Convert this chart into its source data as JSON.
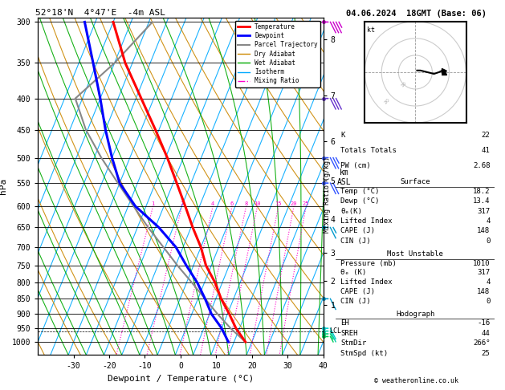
{
  "title_left": "52°18'N  4°47'E  -4m ASL",
  "title_right": "04.06.2024  18GMT (Base: 06)",
  "xlabel": "Dewpoint / Temperature (°C)",
  "ylabel_left": "hPa",
  "ylabel_right": "km\nASL",
  "pressure_levels": [
    300,
    350,
    400,
    450,
    500,
    550,
    600,
    650,
    700,
    750,
    800,
    850,
    900,
    950,
    1000
  ],
  "temp_range": [
    -40,
    40
  ],
  "temp_ticks": [
    -30,
    -20,
    -10,
    0,
    10,
    20,
    30,
    40
  ],
  "km_ticks": [
    1,
    2,
    3,
    4,
    5,
    6,
    7,
    8
  ],
  "km_pressures": [
    870,
    795,
    715,
    630,
    545,
    470,
    395,
    320
  ],
  "lcl_pressure": 960,
  "color_temperature": "#ff0000",
  "color_dewpoint": "#0000ff",
  "color_parcel": "#888888",
  "color_dry_adiabat": "#cc8800",
  "color_wet_adiabat": "#00aa00",
  "color_isotherm": "#00aaff",
  "color_mixing": "#ff00cc",
  "legend_items": [
    {
      "label": "Temperature",
      "color": "#ff0000",
      "lw": 2.0,
      "ls": "-"
    },
    {
      "label": "Dewpoint",
      "color": "#0000ff",
      "lw": 2.0,
      "ls": "-"
    },
    {
      "label": "Parcel Trajectory",
      "color": "#888888",
      "lw": 1.5,
      "ls": "-"
    },
    {
      "label": "Dry Adiabat",
      "color": "#cc8800",
      "lw": 1.0,
      "ls": "-"
    },
    {
      "label": "Wet Adiabat",
      "color": "#00aa00",
      "lw": 1.0,
      "ls": "-"
    },
    {
      "label": "Isotherm",
      "color": "#00aaff",
      "lw": 1.0,
      "ls": "-"
    },
    {
      "label": "Mixing Ratio",
      "color": "#ff00cc",
      "lw": 1.0,
      "ls": "-."
    }
  ],
  "stats": {
    "K": 22,
    "Totals Totals": 41,
    "PW (cm)": 2.68,
    "Surface": {
      "Temp (C)": 18.2,
      "Dewp (C)": 13.4,
      "theta_e (K)": 317,
      "Lifted Index": 4,
      "CAPE (J)": 148,
      "CIN (J)": 0
    },
    "Most Unstable": {
      "Pressure (mb)": 1010,
      "theta_e (K)": 317,
      "Lifted Index": 4,
      "CAPE (J)": 148,
      "CIN (J)": 0
    },
    "Hodograph": {
      "EH": -16,
      "SREH": 44,
      "StmDir": 266,
      "StmSpd (kt)": 25
    }
  },
  "temperature_profile": {
    "pressure": [
      1000,
      950,
      900,
      850,
      800,
      750,
      700,
      650,
      600,
      550,
      500,
      450,
      400,
      350,
      300
    ],
    "temp": [
      18.2,
      14.0,
      10.5,
      6.5,
      3.0,
      -1.5,
      -5.0,
      -9.5,
      -14.0,
      -19.0,
      -24.5,
      -31.0,
      -38.5,
      -47.0,
      -55.0
    ]
  },
  "dewpoint_profile": {
    "pressure": [
      1000,
      950,
      900,
      850,
      800,
      750,
      700,
      650,
      600,
      550,
      500,
      450,
      400,
      350,
      300
    ],
    "temp": [
      13.4,
      10.0,
      5.5,
      2.0,
      -2.0,
      -7.0,
      -12.0,
      -19.0,
      -28.0,
      -35.0,
      -40.0,
      -45.0,
      -50.0,
      -56.0,
      -63.0
    ]
  },
  "parcel_profile": {
    "pressure": [
      1000,
      950,
      900,
      850,
      800,
      750,
      700,
      650,
      600,
      550,
      500,
      450,
      400,
      350,
      300
    ],
    "temp": [
      18.2,
      12.5,
      7.2,
      2.0,
      -3.5,
      -9.5,
      -15.5,
      -22.0,
      -28.5,
      -35.5,
      -43.0,
      -50.5,
      -57.0,
      -50.0,
      -44.0
    ]
  },
  "wind_barb_pressures": [
    300,
    400,
    500,
    550,
    650,
    850,
    950,
    960,
    970,
    980
  ],
  "wind_barb_colors": [
    "#cc00cc",
    "#6633cc",
    "#3355ff",
    "#3355ff",
    "#0099cc",
    "#0099cc",
    "#00cccc",
    "#00ccaa",
    "#00cc77",
    "#00cc55"
  ],
  "wind_barb_speeds": [
    35,
    30,
    25,
    20,
    15,
    10,
    10,
    10,
    5,
    5
  ],
  "wind_barb_dirs": [
    270,
    250,
    240,
    230,
    220,
    200,
    180,
    180,
    160,
    150
  ],
  "background_color": "#ffffff",
  "font_family": "monospace",
  "skew": 30.0
}
